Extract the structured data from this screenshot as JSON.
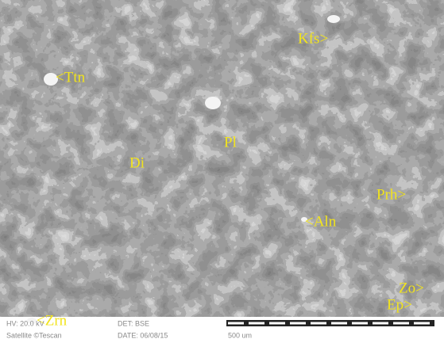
{
  "image": {
    "labels": [
      "<Ttn",
      "Kfs>",
      "Pl",
      "Di",
      "Prh>",
      "<Aln",
      "Zo>",
      "Ep>",
      "<Zrn"
    ]
  },
  "footer": {
    "hv": "HV: 20.0 kV",
    "det": "DET: BSE",
    "brand": "Satellite ©Tescan",
    "date": "DATE: 06/08/15",
    "scale": "500 um"
  }
}
